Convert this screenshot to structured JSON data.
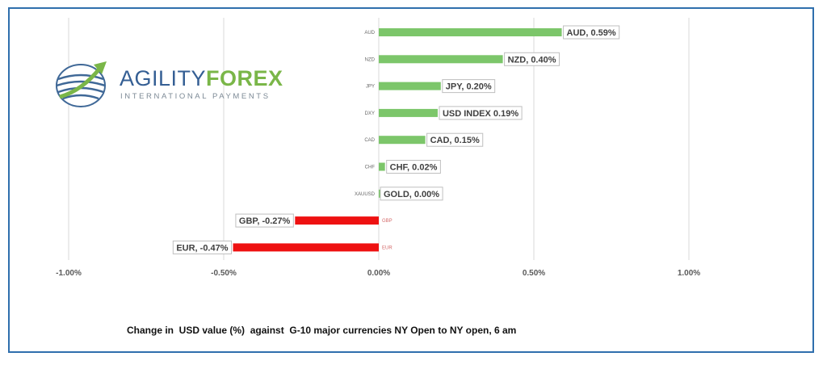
{
  "logo": {
    "name_part1": "AGILITY",
    "name_part2": "FOREX",
    "tagline": "INTERNATIONAL PAYMENTS"
  },
  "caption": "Change in  USD value (%)  against  G-10 major currencies NY Open to NY open, 6 am",
  "colors": {
    "positive_bar": "#7cc66a",
    "negative_bar": "#ee1111",
    "frame": "#2f6fad",
    "gridline": "#d9d9d9",
    "logo_blue": "#355f94",
    "logo_green": "#7ab648"
  },
  "chart_data": {
    "type": "bar",
    "orientation": "horizontal",
    "xlim": [
      -0.01,
      0.01
    ],
    "x_ticks": [
      -0.01,
      -0.005,
      0,
      0.005,
      0.01
    ],
    "x_tick_labels": [
      "-1.00%",
      "-0.50%",
      "0.00%",
      "0.50%",
      "1.00%"
    ],
    "grid": "vertical",
    "categories": [
      "AUD",
      "NZD",
      "JPY",
      "DXY",
      "CAD",
      "CHF",
      "XAUUSD",
      "GBP",
      "EUR"
    ],
    "values": [
      0.0059,
      0.004,
      0.002,
      0.0019,
      0.0015,
      0.0002,
      0.0,
      -0.0027,
      -0.0047
    ],
    "data_labels": [
      "AUD, 0.59%",
      "NZD, 0.40%",
      "JPY, 0.20%",
      "USD INDEX 0.19%",
      "CAD, 0.15%",
      "CHF, 0.02%",
      "GOLD, 0.00%",
      "GBP, -0.27%",
      "EUR, -0.47%"
    ]
  }
}
